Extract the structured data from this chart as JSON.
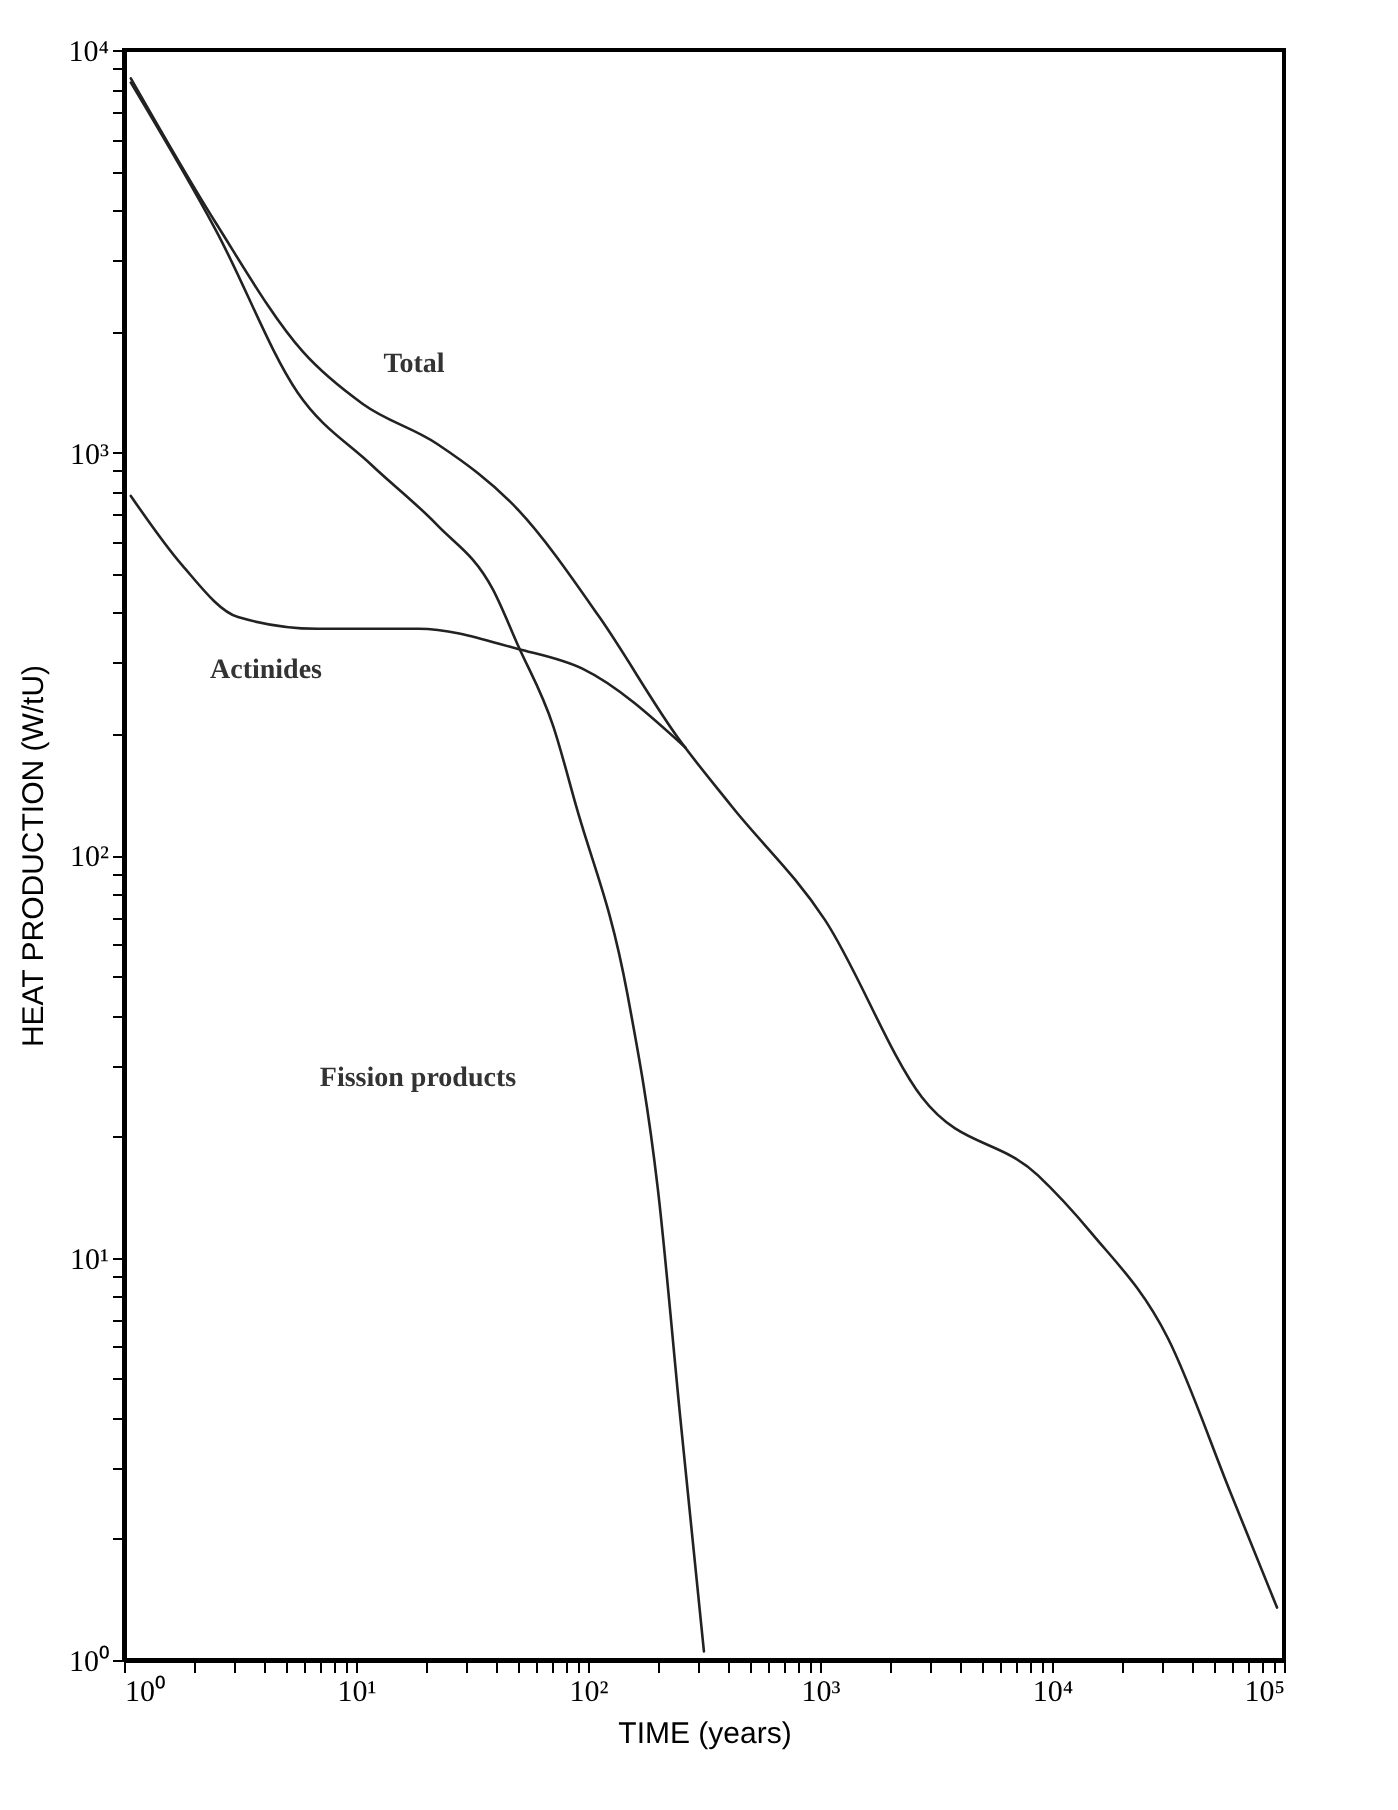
{
  "chart_data": {
    "type": "line",
    "xlabel": "TIME (years)",
    "ylabel": "HEAT PRODUCTION (W/tU)",
    "log": "xy",
    "grid": false,
    "legend": false,
    "marker": "none",
    "line_style": "solid",
    "xlim": [
      1,
      100000
    ],
    "ylim": [
      1,
      10000
    ],
    "xticks": [
      {
        "value": 1,
        "label": "10⁰"
      },
      {
        "value": 2,
        "label": null
      },
      {
        "value": 3,
        "label": null
      },
      {
        "value": 4,
        "label": null
      },
      {
        "value": 5,
        "label": null
      },
      {
        "value": 6,
        "label": null
      },
      {
        "value": 7,
        "label": null
      },
      {
        "value": 8,
        "label": null
      },
      {
        "value": 9,
        "label": null
      },
      {
        "value": 10,
        "label": "10¹"
      },
      {
        "value": 20,
        "label": null
      },
      {
        "value": 30,
        "label": null
      },
      {
        "value": 40,
        "label": null
      },
      {
        "value": 50,
        "label": null
      },
      {
        "value": 60,
        "label": null
      },
      {
        "value": 70,
        "label": null
      },
      {
        "value": 80,
        "label": null
      },
      {
        "value": 90,
        "label": null
      },
      {
        "value": 100,
        "label": "10²"
      },
      {
        "value": 200,
        "label": null
      },
      {
        "value": 300,
        "label": null
      },
      {
        "value": 400,
        "label": null
      },
      {
        "value": 500,
        "label": null
      },
      {
        "value": 600,
        "label": null
      },
      {
        "value": 700,
        "label": null
      },
      {
        "value": 800,
        "label": null
      },
      {
        "value": 900,
        "label": null
      },
      {
        "value": 1000,
        "label": "10³"
      },
      {
        "value": 2000,
        "label": null
      },
      {
        "value": 3000,
        "label": null
      },
      {
        "value": 4000,
        "label": null
      },
      {
        "value": 5000,
        "label": null
      },
      {
        "value": 6000,
        "label": null
      },
      {
        "value": 7000,
        "label": null
      },
      {
        "value": 8000,
        "label": null
      },
      {
        "value": 9000,
        "label": null
      },
      {
        "value": 10000,
        "label": "10⁴"
      },
      {
        "value": 20000,
        "label": null
      },
      {
        "value": 30000,
        "label": null
      },
      {
        "value": 40000,
        "label": null
      },
      {
        "value": 50000,
        "label": null
      },
      {
        "value": 60000,
        "label": null
      },
      {
        "value": 70000,
        "label": null
      },
      {
        "value": 80000,
        "label": null
      },
      {
        "value": 90000,
        "label": null
      },
      {
        "value": 100000,
        "label": "10⁵"
      }
    ],
    "yticks": [
      {
        "value": 1,
        "label": "10⁰"
      },
      {
        "value": 2,
        "label": null
      },
      {
        "value": 3,
        "label": null
      },
      {
        "value": 4,
        "label": null
      },
      {
        "value": 5,
        "label": null
      },
      {
        "value": 6,
        "label": null
      },
      {
        "value": 7,
        "label": null
      },
      {
        "value": 8,
        "label": null
      },
      {
        "value": 9,
        "label": null
      },
      {
        "value": 10,
        "label": "10¹"
      },
      {
        "value": 20,
        "label": null
      },
      {
        "value": 30,
        "label": null
      },
      {
        "value": 40,
        "label": null
      },
      {
        "value": 50,
        "label": null
      },
      {
        "value": 60,
        "label": null
      },
      {
        "value": 70,
        "label": null
      },
      {
        "value": 80,
        "label": null
      },
      {
        "value": 90,
        "label": null
      },
      {
        "value": 100,
        "label": "10²"
      },
      {
        "value": 200,
        "label": null
      },
      {
        "value": 300,
        "label": null
      },
      {
        "value": 400,
        "label": null
      },
      {
        "value": 500,
        "label": null
      },
      {
        "value": 600,
        "label": null
      },
      {
        "value": 700,
        "label": null
      },
      {
        "value": 800,
        "label": null
      },
      {
        "value": 900,
        "label": null
      },
      {
        "value": 1000,
        "label": "10³"
      },
      {
        "value": 2000,
        "label": null
      },
      {
        "value": 3000,
        "label": null
      },
      {
        "value": 4000,
        "label": null
      },
      {
        "value": 5000,
        "label": null
      },
      {
        "value": 6000,
        "label": null
      },
      {
        "value": 7000,
        "label": null
      },
      {
        "value": 8000,
        "label": null
      },
      {
        "value": 9000,
        "label": null
      },
      {
        "value": 10000,
        "label": "10⁴"
      }
    ],
    "series": [
      {
        "color": "#222222",
        "x": [
          1.07,
          2.5,
          5.9,
          10.7,
          22.4,
          50,
          112,
          245,
          417,
          1050,
          2750,
          8700,
          14800,
          31600,
          58900,
          93300
        ],
        "values": [
          8500,
          3700,
          1780,
          1320,
          1050,
          720,
          390,
          195,
          132,
          69,
          25,
          16,
          11.5,
          6.3,
          2.6,
          1.35
        ]
      },
      {
        "color": "#222222",
        "x": [
          1.07,
          1.78,
          3.1,
          6.8,
          18.6,
          50,
          95,
          263
        ],
        "values": [
          780,
          525,
          390,
          365,
          365,
          325,
          290,
          185
        ]
      },
      {
        "color": "#222222",
        "x": [
          1.07,
          2.5,
          5.6,
          11.7,
          22.4,
          38.9,
          50,
          70.8,
          89,
          148,
          200,
          251,
          316
        ],
        "values": [
          8300,
          3550,
          1410,
          930,
          660,
          457,
          331,
          209,
          132,
          45,
          14.8,
          3.9,
          1.05
        ]
      }
    ],
    "annotations": [
      "Total",
      "Actinides",
      "Fission products"
    ]
  }
}
